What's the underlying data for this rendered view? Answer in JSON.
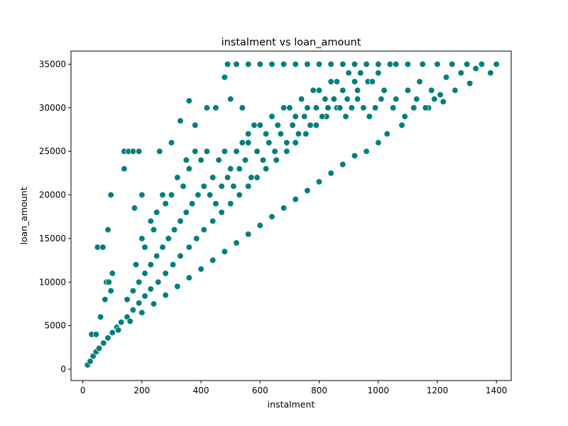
{
  "chart_data": {
    "type": "scatter",
    "title": "instalment vs loan_amount",
    "xlabel": "instalment",
    "ylabel": "loan_amount",
    "xlim": [
      -40,
      1450
    ],
    "ylim": [
      -1300,
      36500
    ],
    "x_ticks": [
      0,
      200,
      400,
      600,
      800,
      1000,
      1200,
      1400
    ],
    "y_ticks": [
      0,
      5000,
      10000,
      15000,
      20000,
      25000,
      30000,
      35000
    ],
    "x_tick_labels": [
      "0",
      "200",
      "400",
      "600",
      "800",
      "1000",
      "1200",
      "1400"
    ],
    "y_tick_labels": [
      "0",
      "5000",
      "10000",
      "15000",
      "20000",
      "25000",
      "30000",
      "35000"
    ],
    "grid": false,
    "legend": "none",
    "marker_color": "#007f7f",
    "marker_edge_color": "#ffffff",
    "series": [
      {
        "points": [
          [
            16,
            500
          ],
          [
            25,
            900
          ],
          [
            35,
            1500
          ],
          [
            45,
            2000
          ],
          [
            55,
            2400
          ],
          [
            70,
            3000
          ],
          [
            85,
            3600
          ],
          [
            100,
            4200
          ],
          [
            115,
            4800
          ],
          [
            130,
            5400
          ],
          [
            150,
            6000
          ],
          [
            170,
            6800
          ],
          [
            190,
            7600
          ],
          [
            210,
            8400
          ],
          [
            230,
            9200
          ],
          [
            255,
            10000
          ],
          [
            280,
            11000
          ],
          [
            305,
            12000
          ],
          [
            330,
            13000
          ],
          [
            360,
            14000
          ],
          [
            385,
            15000
          ],
          [
            410,
            16000
          ],
          [
            440,
            17000
          ],
          [
            470,
            18000
          ],
          [
            500,
            19000
          ],
          [
            530,
            20000
          ],
          [
            560,
            21000
          ],
          [
            590,
            22000
          ],
          [
            620,
            23000
          ],
          [
            655,
            24000
          ],
          [
            690,
            25000
          ],
          [
            720,
            26000
          ],
          [
            755,
            27000
          ],
          [
            790,
            28000
          ],
          [
            825,
            29000
          ],
          [
            860,
            30000
          ],
          [
            895,
            31000
          ],
          [
            930,
            32000
          ],
          [
            965,
            33000
          ],
          [
            1000,
            34000
          ],
          [
            1040,
            35000
          ],
          [
            30,
            4000
          ],
          [
            45,
            4000
          ],
          [
            60,
            6000
          ],
          [
            75,
            8000
          ],
          [
            80,
            10000
          ],
          [
            88,
            10000
          ],
          [
            95,
            9000
          ],
          [
            100,
            11000
          ],
          [
            50,
            14000
          ],
          [
            68,
            14000
          ],
          [
            85,
            16000
          ],
          [
            95,
            20000
          ],
          [
            140,
            23000
          ],
          [
            140,
            25000
          ],
          [
            155,
            25000
          ],
          [
            170,
            25000
          ],
          [
            190,
            25000
          ],
          [
            175,
            18500
          ],
          [
            200,
            20000
          ],
          [
            260,
            25000
          ],
          [
            300,
            26000
          ],
          [
            330,
            28500
          ],
          [
            360,
            30800
          ],
          [
            380,
            28000
          ],
          [
            420,
            30000
          ],
          [
            450,
            30000
          ],
          [
            500,
            31000
          ],
          [
            540,
            30000
          ],
          [
            560,
            26000
          ],
          [
            480,
            33500
          ],
          [
            490,
            35000
          ],
          [
            520,
            35000
          ],
          [
            560,
            35000
          ],
          [
            600,
            35000
          ],
          [
            640,
            35000
          ],
          [
            680,
            35000
          ],
          [
            720,
            35000
          ],
          [
            760,
            35000
          ],
          [
            800,
            35000
          ],
          [
            840,
            35000
          ],
          [
            880,
            35000
          ],
          [
            920,
            35000
          ],
          [
            960,
            35000
          ],
          [
            1000,
            35000
          ],
          [
            1060,
            35000
          ],
          [
            1100,
            35000
          ],
          [
            1150,
            35000
          ],
          [
            1200,
            35000
          ],
          [
            1250,
            35000
          ],
          [
            1300,
            35000
          ],
          [
            1350,
            35000
          ],
          [
            1400,
            35000
          ],
          [
            1380,
            34000
          ],
          [
            1310,
            32800
          ],
          [
            1260,
            32000
          ],
          [
            1220,
            30700
          ],
          [
            1170,
            30000
          ],
          [
            1120,
            30000
          ],
          [
            1080,
            28000
          ],
          [
            1030,
            27000
          ],
          [
            1000,
            26000
          ],
          [
            960,
            25000
          ],
          [
            920,
            24500
          ],
          [
            880,
            23500
          ],
          [
            840,
            22500
          ],
          [
            800,
            21500
          ],
          [
            760,
            20500
          ],
          [
            720,
            19500
          ],
          [
            680,
            18500
          ],
          [
            640,
            17500
          ],
          [
            600,
            16500
          ],
          [
            560,
            15500
          ],
          [
            520,
            14500
          ],
          [
            480,
            13500
          ],
          [
            440,
            12500
          ],
          [
            400,
            11500
          ],
          [
            360,
            10500
          ],
          [
            320,
            9500
          ],
          [
            280,
            8500
          ],
          [
            240,
            7500
          ],
          [
            200,
            6500
          ],
          [
            160,
            5500
          ],
          [
            120,
            4500
          ],
          [
            180,
            12000
          ],
          [
            200,
            15000
          ],
          [
            210,
            14000
          ],
          [
            230,
            17000
          ],
          [
            240,
            16000
          ],
          [
            250,
            18000
          ],
          [
            270,
            20000
          ],
          [
            280,
            19000
          ],
          [
            300,
            20000
          ],
          [
            320,
            22000
          ],
          [
            340,
            21000
          ],
          [
            350,
            24000
          ],
          [
            360,
            23000
          ],
          [
            380,
            25000
          ],
          [
            400,
            24000
          ],
          [
            420,
            25000
          ],
          [
            440,
            22000
          ],
          [
            460,
            24000
          ],
          [
            480,
            25000
          ],
          [
            500,
            23000
          ],
          [
            520,
            25000
          ],
          [
            540,
            26000
          ],
          [
            560,
            27000
          ],
          [
            580,
            28000
          ],
          [
            600,
            28000
          ],
          [
            620,
            27000
          ],
          [
            640,
            29000
          ],
          [
            660,
            28000
          ],
          [
            680,
            30000
          ],
          [
            700,
            30000
          ],
          [
            720,
            29000
          ],
          [
            740,
            31000
          ],
          [
            760,
            30000
          ],
          [
            780,
            32000
          ],
          [
            800,
            32000
          ],
          [
            820,
            31000
          ],
          [
            840,
            33000
          ],
          [
            860,
            33000
          ],
          [
            880,
            32000
          ],
          [
            900,
            34000
          ],
          [
            920,
            33000
          ],
          [
            940,
            34000
          ],
          [
            980,
            33000
          ],
          [
            1020,
            32000
          ],
          [
            1060,
            31000
          ],
          [
            1100,
            32000
          ],
          [
            1140,
            33000
          ],
          [
            1180,
            32000
          ],
          [
            1230,
            33500
          ],
          [
            1280,
            34000
          ],
          [
            1330,
            34500
          ],
          [
            150,
            8000
          ],
          [
            170,
            9000
          ],
          [
            190,
            10000
          ],
          [
            210,
            11000
          ],
          [
            230,
            12000
          ],
          [
            250,
            13000
          ],
          [
            270,
            14000
          ],
          [
            290,
            15000
          ],
          [
            310,
            16000
          ],
          [
            330,
            17000
          ],
          [
            350,
            18000
          ],
          [
            370,
            19000
          ],
          [
            390,
            20000
          ],
          [
            410,
            21000
          ],
          [
            430,
            20000
          ],
          [
            450,
            19000
          ],
          [
            470,
            21000
          ],
          [
            490,
            22000
          ],
          [
            510,
            21000
          ],
          [
            530,
            23000
          ],
          [
            550,
            24000
          ],
          [
            570,
            22000
          ],
          [
            590,
            25000
          ],
          [
            610,
            24000
          ],
          [
            630,
            26000
          ],
          [
            650,
            25000
          ],
          [
            670,
            27000
          ],
          [
            690,
            26000
          ],
          [
            710,
            28000
          ],
          [
            730,
            27000
          ],
          [
            750,
            29000
          ],
          [
            770,
            28000
          ],
          [
            790,
            30000
          ],
          [
            810,
            29000
          ],
          [
            830,
            30000
          ],
          [
            850,
            31000
          ],
          [
            870,
            30000
          ],
          [
            890,
            29000
          ],
          [
            910,
            30000
          ],
          [
            930,
            31000
          ],
          [
            950,
            30000
          ],
          [
            970,
            29000
          ],
          [
            990,
            30000
          ],
          [
            1010,
            31000
          ],
          [
            1050,
            30000
          ],
          [
            1090,
            29000
          ],
          [
            1130,
            31000
          ],
          [
            1160,
            30000
          ],
          [
            1190,
            31000
          ],
          [
            1210,
            31500
          ]
        ]
      }
    ]
  }
}
